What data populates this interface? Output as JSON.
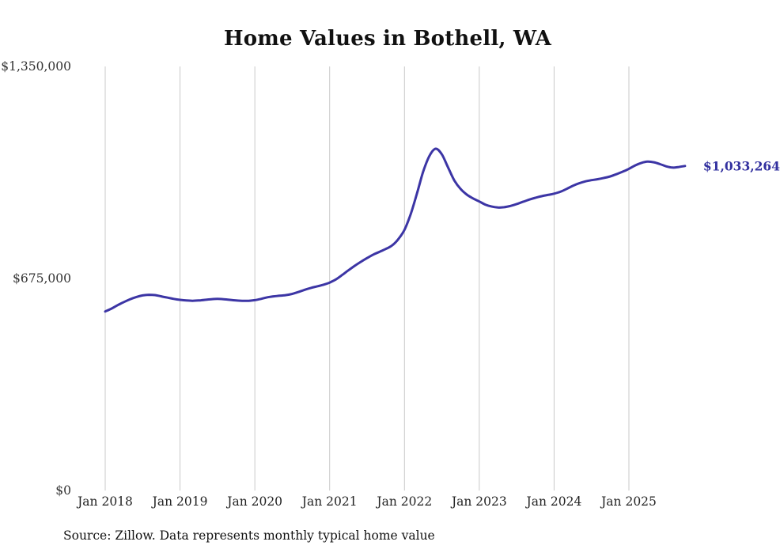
{
  "title": "Home Values in Bothell, WA",
  "source_note": "Source: Zillow. Data represents monthly typical home value",
  "end_label": "$1,033,264",
  "colors": {
    "line": "#3c35a5",
    "end_label": "#32309f",
    "gridline": "#c9c9c9"
  },
  "chart_data": {
    "type": "line",
    "title": "Home Values in Bothell, WA",
    "xlabel": "",
    "ylabel": "",
    "ylim": [
      0,
      1350000
    ],
    "grid": "vertical-only",
    "legend": "none",
    "y_ticks": [
      {
        "value": 0,
        "label": "$0"
      },
      {
        "value": 675000,
        "label": "$675,000"
      },
      {
        "value": 1350000,
        "label": "$1,350,000"
      }
    ],
    "x_ticks": [
      "Jan 2018",
      "Jan 2019",
      "Jan 2020",
      "Jan 2021",
      "Jan 2022",
      "Jan 2023",
      "Jan 2024",
      "Jan 2025"
    ],
    "series": [
      {
        "name": "Monthly typical home value",
        "start_month": "2018-01",
        "end_month": "2025-10",
        "last_value_label": "$1,033,264",
        "values": [
          570000,
          579000,
          590000,
          600000,
          609000,
          616000,
          621000,
          623000,
          622000,
          618000,
          614000,
          610000,
          607000,
          605000,
          604000,
          605000,
          607000,
          609000,
          610000,
          609000,
          607000,
          605000,
          604000,
          604000,
          606000,
          610000,
          615000,
          618000,
          620000,
          622000,
          626000,
          632000,
          639000,
          645000,
          650000,
          655000,
          662000,
          672000,
          686000,
          701000,
          715000,
          728000,
          740000,
          751000,
          760000,
          769000,
          780000,
          800000,
          830000,
          880000,
          945000,
          1015000,
          1065000,
          1088000,
          1070000,
          1028000,
          987000,
          960000,
          942000,
          930000,
          920000,
          910000,
          904000,
          901000,
          902000,
          906000,
          912000,
          919000,
          926000,
          932000,
          937000,
          941000,
          945000,
          951000,
          960000,
          970000,
          978000,
          984000,
          988000,
          991000,
          995000,
          1000000,
          1007000,
          1015000,
          1024000,
          1035000,
          1043000,
          1047000,
          1045000,
          1039000,
          1032000,
          1028000,
          1030000,
          1033264
        ]
      }
    ]
  }
}
